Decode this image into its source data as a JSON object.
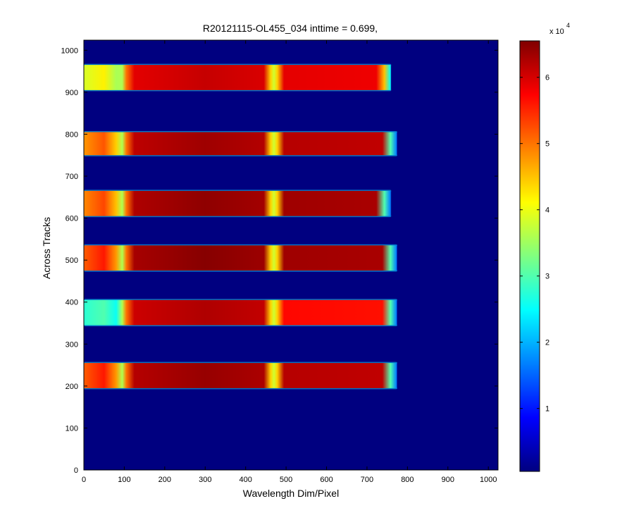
{
  "chart_data": {
    "type": "heatmap",
    "title": "R20121115-OL455_034 inttime = 0.699,",
    "xlabel": "Wavelength Dim/Pixel",
    "ylabel": "Across Tracks",
    "xlim": [
      0,
      1024
    ],
    "ylim": [
      0,
      1024
    ],
    "x_ticks": [
      0,
      100,
      200,
      300,
      400,
      500,
      600,
      700,
      800,
      900,
      1000
    ],
    "y_ticks": [
      0,
      100,
      200,
      300,
      400,
      500,
      600,
      700,
      800,
      900,
      1000
    ],
    "colorbar": {
      "colormap": "jet",
      "range": [
        500,
        65500
      ],
      "ticks": [
        1,
        2,
        3,
        4,
        5,
        6
      ],
      "multiplier": "x 10",
      "exponent": "4"
    },
    "background_value": 500,
    "bands": [
      {
        "y_bottom": 905,
        "y_top": 965,
        "x_start": 0,
        "x_end": 760,
        "edge_x": 758,
        "left_value": 42000,
        "center_value": 61000,
        "right_value": 59000,
        "right_falloff": 45000
      },
      {
        "y_bottom": 750,
        "y_top": 805,
        "x_start": 0,
        "x_end": 775,
        "edge_x": 773,
        "left_value": 52000,
        "center_value": 63500,
        "right_value": 62000,
        "right_falloff": 30000
      },
      {
        "y_bottom": 605,
        "y_top": 665,
        "x_start": 0,
        "x_end": 760,
        "edge_x": 758,
        "left_value": 53000,
        "center_value": 64500,
        "right_value": 63500,
        "right_falloff": 30000
      },
      {
        "y_bottom": 475,
        "y_top": 535,
        "x_start": 0,
        "x_end": 775,
        "edge_x": 773,
        "left_value": 56000,
        "center_value": 65000,
        "right_value": 63500,
        "right_falloff": 30000
      },
      {
        "y_bottom": 345,
        "y_top": 405,
        "x_start": 0,
        "x_end": 775,
        "edge_x": 773,
        "left_value": 30000,
        "center_value": 62500,
        "right_value": 57000,
        "right_falloff": 30000
      },
      {
        "y_bottom": 195,
        "y_top": 255,
        "x_start": 0,
        "x_end": 775,
        "edge_x": 773,
        "left_value": 56000,
        "center_value": 64000,
        "right_value": 62000,
        "right_falloff": 30000
      }
    ]
  }
}
